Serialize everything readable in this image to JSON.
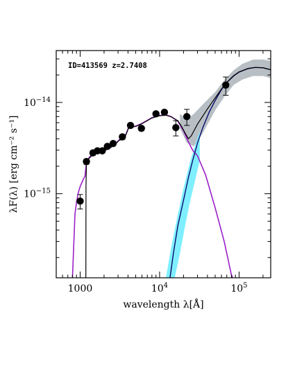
{
  "chart_data": {
    "type": "scatter",
    "annotation": "ID=413569 z=2.7408",
    "xlabel": "wavelength λ[Å]",
    "ylabel": "λF(λ) [erg cm⁻² s⁻¹]",
    "xscale": "log",
    "yscale": "log",
    "xlim": [
      500,
      250000
    ],
    "ylim": [
      1.2e-16,
      3.7e-14
    ],
    "xticks": [
      {
        "value": 1000,
        "base": "1000",
        "exp": ""
      },
      {
        "value": 10000,
        "base": "10",
        "exp": "4"
      },
      {
        "value": 100000,
        "base": "10",
        "exp": "5"
      }
    ],
    "yticks": [
      {
        "value": 1e-15,
        "base": "10",
        "exp": "−15"
      },
      {
        "value": 1e-14,
        "base": "10",
        "exp": "−14"
      }
    ],
    "colors": {
      "data": "#000000",
      "total_model": "#000000",
      "stellar": "#9b1fc8",
      "dust": "#0a0a6e",
      "dust_band": "#7fefff",
      "total_band": "#b8bfc4"
    },
    "series": [
      {
        "role": "photometry",
        "points": [
          {
            "x": 1000,
            "y": 8.3e-16,
            "yerr": 1.5e-16
          },
          {
            "x": 1200,
            "y": 2.25e-15,
            "yerr": 1.5e-16
          },
          {
            "x": 1450,
            "y": 2.8e-15,
            "yerr": 1.5e-16
          },
          {
            "x": 1650,
            "y": 2.95e-15,
            "yerr": 1.5e-16
          },
          {
            "x": 1900,
            "y": 2.95e-15,
            "yerr": 1.5e-16
          },
          {
            "x": 2200,
            "y": 3.3e-15,
            "yerr": 1.5e-16
          },
          {
            "x": 2600,
            "y": 3.55e-15,
            "yerr": 2e-16
          },
          {
            "x": 3400,
            "y": 4.2e-15,
            "yerr": 2.5e-16
          },
          {
            "x": 4300,
            "y": 5.6e-15,
            "yerr": 3e-16
          },
          {
            "x": 5900,
            "y": 5.2e-15,
            "yerr": 3e-16
          },
          {
            "x": 9000,
            "y": 7.5e-15,
            "yerr": 4e-16
          },
          {
            "x": 11500,
            "y": 7.8e-15,
            "yerr": 4e-16
          },
          {
            "x": 16000,
            "y": 5.3e-15,
            "yerr": 1e-15
          },
          {
            "x": 22000,
            "y": 7e-15,
            "yerr": 1.4e-15
          },
          {
            "x": 68000,
            "y": 1.55e-14,
            "yerr": 3.5e-15
          }
        ]
      },
      {
        "role": "stellar_model",
        "points": [
          [
            800,
            1.2e-16
          ],
          [
            860,
            6e-16
          ],
          [
            900,
            8e-16
          ],
          [
            940,
            1e-15
          ],
          [
            1000,
            1.2e-15
          ],
          [
            1100,
            1.45e-15
          ],
          [
            1150,
            1.55e-15
          ],
          [
            1200,
            2.2e-15
          ],
          [
            1300,
            2.5e-15
          ],
          [
            1500,
            2.8e-15
          ],
          [
            1700,
            2.9e-15
          ],
          [
            2000,
            3e-15
          ],
          [
            2300,
            3.1e-15
          ],
          [
            2700,
            3.45e-15
          ],
          [
            3100,
            3.9e-15
          ],
          [
            3500,
            4e-15
          ],
          [
            3700,
            4.3e-15
          ],
          [
            4100,
            5.4e-15
          ],
          [
            5000,
            5.5e-15
          ],
          [
            6000,
            5.9e-15
          ],
          [
            8000,
            6.8e-15
          ],
          [
            10000,
            7.2e-15
          ],
          [
            12000,
            7.3e-15
          ],
          [
            14000,
            7e-15
          ],
          [
            17000,
            6.2e-15
          ],
          [
            20000,
            4.9e-15
          ],
          [
            23000,
            3.7e-15
          ],
          [
            26000,
            3e-15
          ],
          [
            30000,
            2.6e-15
          ],
          [
            38000,
            1.6e-15
          ],
          [
            50000,
            7e-16
          ],
          [
            65000,
            3e-16
          ],
          [
            80000,
            1.3e-16
          ],
          [
            83000,
            1.2e-16
          ]
        ]
      },
      {
        "role": "dust_model",
        "points": [
          [
            13500,
            1.2e-16
          ],
          [
            15000,
            2.3e-16
          ],
          [
            17000,
            4.5e-16
          ],
          [
            20000,
            8.5e-16
          ],
          [
            23000,
            1.5e-15
          ],
          [
            26000,
            2.3e-15
          ],
          [
            30000,
            3.6e-15
          ],
          [
            35000,
            5.3e-15
          ],
          [
            42000,
            7.8e-15
          ],
          [
            50000,
            1.05e-14
          ],
          [
            60000,
            1.38e-14
          ],
          [
            70000,
            1.65e-14
          ],
          [
            85000,
            1.95e-14
          ],
          [
            100000,
            2.15e-14
          ],
          [
            130000,
            2.35e-14
          ],
          [
            160000,
            2.42e-14
          ],
          [
            200000,
            2.4e-14
          ],
          [
            250000,
            2.28e-14
          ]
        ]
      },
      {
        "role": "total_model",
        "points": [
          [
            1180,
            1.2e-16
          ],
          [
            1185,
            1.2e-15
          ],
          [
            1200,
            2.1e-15
          ],
          [
            1300,
            2.45e-15
          ],
          [
            1500,
            2.75e-15
          ],
          [
            2000,
            2.95e-15
          ],
          [
            2700,
            3.4e-15
          ],
          [
            3100,
            3.85e-15
          ],
          [
            3500,
            3.95e-15
          ],
          [
            3700,
            4.25e-15
          ],
          [
            4100,
            5.3e-15
          ],
          [
            5000,
            5.45e-15
          ],
          [
            6000,
            5.85e-15
          ],
          [
            8000,
            6.75e-15
          ],
          [
            10000,
            7.15e-15
          ],
          [
            12000,
            7.25e-15
          ],
          [
            14000,
            6.95e-15
          ],
          [
            17000,
            6.3e-15
          ],
          [
            19000,
            5.4e-15
          ],
          [
            21000,
            4.6e-15
          ],
          [
            23000,
            4e-15
          ],
          [
            25000,
            4.3e-15
          ],
          [
            30000,
            5.8e-15
          ],
          [
            40000,
            8.5e-15
          ],
          [
            50000,
            1.12e-14
          ],
          [
            60000,
            1.4e-14
          ],
          [
            70000,
            1.66e-14
          ],
          [
            85000,
            1.96e-14
          ],
          [
            100000,
            2.16e-14
          ],
          [
            130000,
            2.36e-14
          ],
          [
            160000,
            2.42e-14
          ],
          [
            200000,
            2.4e-14
          ],
          [
            250000,
            2.28e-14
          ]
        ]
      },
      {
        "role": "dust_band",
        "upper": [
          [
            12000,
            1.2e-16
          ],
          [
            14000,
            2.6e-16
          ],
          [
            17000,
            6e-16
          ],
          [
            20000,
            1.15e-15
          ],
          [
            24000,
            2.2e-15
          ],
          [
            28000,
            3.4e-15
          ],
          [
            32000,
            4.8e-15
          ]
        ],
        "lower": [
          [
            15500,
            1.2e-16
          ],
          [
            18000,
            2.2e-16
          ],
          [
            21000,
            4.5e-16
          ],
          [
            24000,
            8e-16
          ],
          [
            28000,
            1.4e-15
          ],
          [
            32000,
            2.3e-15
          ]
        ]
      },
      {
        "role": "total_band",
        "upper": [
          [
            18000,
            7.5e-15
          ],
          [
            22000,
            6.5e-15
          ],
          [
            27000,
            7.5e-15
          ],
          [
            35000,
            9.5e-15
          ],
          [
            50000,
            1.3e-14
          ],
          [
            65000,
            1.75e-14
          ],
          [
            85000,
            2.25e-14
          ],
          [
            110000,
            2.65e-14
          ],
          [
            150000,
            2.95e-14
          ],
          [
            200000,
            2.95e-14
          ],
          [
            250000,
            2.85e-14
          ]
        ],
        "lower": [
          [
            18000,
            5.2e-15
          ],
          [
            22000,
            3.6e-15
          ],
          [
            27000,
            3.3e-15
          ],
          [
            35000,
            4.6e-15
          ],
          [
            50000,
            8.2e-15
          ],
          [
            65000,
            1.15e-14
          ],
          [
            85000,
            1.55e-14
          ],
          [
            110000,
            1.78e-14
          ],
          [
            150000,
            1.95e-14
          ],
          [
            200000,
            1.95e-14
          ],
          [
            250000,
            1.85e-14
          ]
        ]
      }
    ]
  }
}
